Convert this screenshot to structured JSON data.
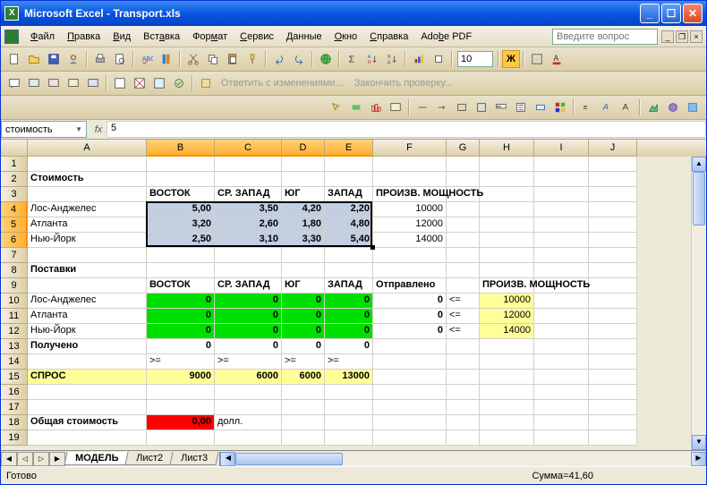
{
  "app": {
    "title": "Microsoft Excel - Transport.xls"
  },
  "menu": {
    "file": "Файл",
    "edit": "Правка",
    "view": "Вид",
    "insert": "Вставка",
    "format": "Формат",
    "tools": "Сервис",
    "data": "Данные",
    "window": "Окно",
    "help": "Справка",
    "adobe": "Adobe PDF",
    "qbox": "Введите вопрос"
  },
  "toolbar2": {
    "reply": "Ответить с изменениями...",
    "finish": "Закончить проверку..."
  },
  "font": {
    "size": "10",
    "bold": "Ж"
  },
  "formula": {
    "name": "стоимость",
    "fx": "fx",
    "value": "5"
  },
  "cols": {
    "labels": [
      "A",
      "B",
      "C",
      "D",
      "E",
      "F",
      "G",
      "H",
      "I",
      "J"
    ],
    "widths": [
      133,
      76,
      75,
      48,
      54,
      82,
      37,
      61,
      61,
      54
    ],
    "selected": [
      1,
      2,
      3,
      4
    ]
  },
  "rows_meta": {
    "count": 19,
    "selected": [
      4,
      5,
      6
    ]
  },
  "cells": {
    "r2": {
      "A": "Стоимость"
    },
    "r3": {
      "B": "ВОСТОК",
      "C": "СР. ЗАПАД",
      "D": "ЮГ",
      "E": "ЗАПАД",
      "F": "ПРОИЗВ. МОЩНОСТЬ"
    },
    "r4": {
      "A": "Лос-Анджелес",
      "B": "5,00",
      "C": "3,50",
      "D": "4,20",
      "E": "2,20",
      "F": "10000"
    },
    "r5": {
      "A": "Атланта",
      "B": "3,20",
      "C": "2,60",
      "D": "1,80",
      "E": "4,80",
      "F": "12000"
    },
    "r6": {
      "A": "Нью-Йорк",
      "B": "2,50",
      "C": "3,10",
      "D": "3,30",
      "E": "5,40",
      "F": "14000"
    },
    "r8": {
      "A": "Поставки"
    },
    "r9": {
      "B": "ВОСТОК",
      "C": "СР. ЗАПАД",
      "D": "ЮГ",
      "E": "ЗАПАД",
      "F": "Отправлено",
      "H": "ПРОИЗВ. МОЩНОСТЬ"
    },
    "r10": {
      "A": "Лос-Анджелес",
      "B": "0",
      "C": "0",
      "D": "0",
      "E": "0",
      "F": "0",
      "G": "<=",
      "H": "10000"
    },
    "r11": {
      "A": "Атланта",
      "B": "0",
      "C": "0",
      "D": "0",
      "E": "0",
      "F": "0",
      "G": "<=",
      "H": "12000"
    },
    "r12": {
      "A": "Нью-Йорк",
      "B": "0",
      "C": "0",
      "D": "0",
      "E": "0",
      "F": "0",
      "G": "<=",
      "H": "14000"
    },
    "r13": {
      "A": "Получено",
      "B": "0",
      "C": "0",
      "D": "0",
      "E": "0"
    },
    "r14": {
      "B": ">=",
      "C": ">=",
      "D": ">=",
      "E": ">="
    },
    "r15": {
      "A": "СПРОС",
      "B": "9000",
      "C": "6000",
      "D": "6000",
      "E": "13000"
    },
    "r18": {
      "A": "Общая стоимость",
      "B": "0,00",
      "C": "долл."
    }
  },
  "tabs": {
    "active": "МОДЕЛЬ",
    "t2": "Лист2",
    "t3": "Лист3"
  },
  "status": {
    "ready": "Готово",
    "sum": "Сумма=41,60"
  }
}
